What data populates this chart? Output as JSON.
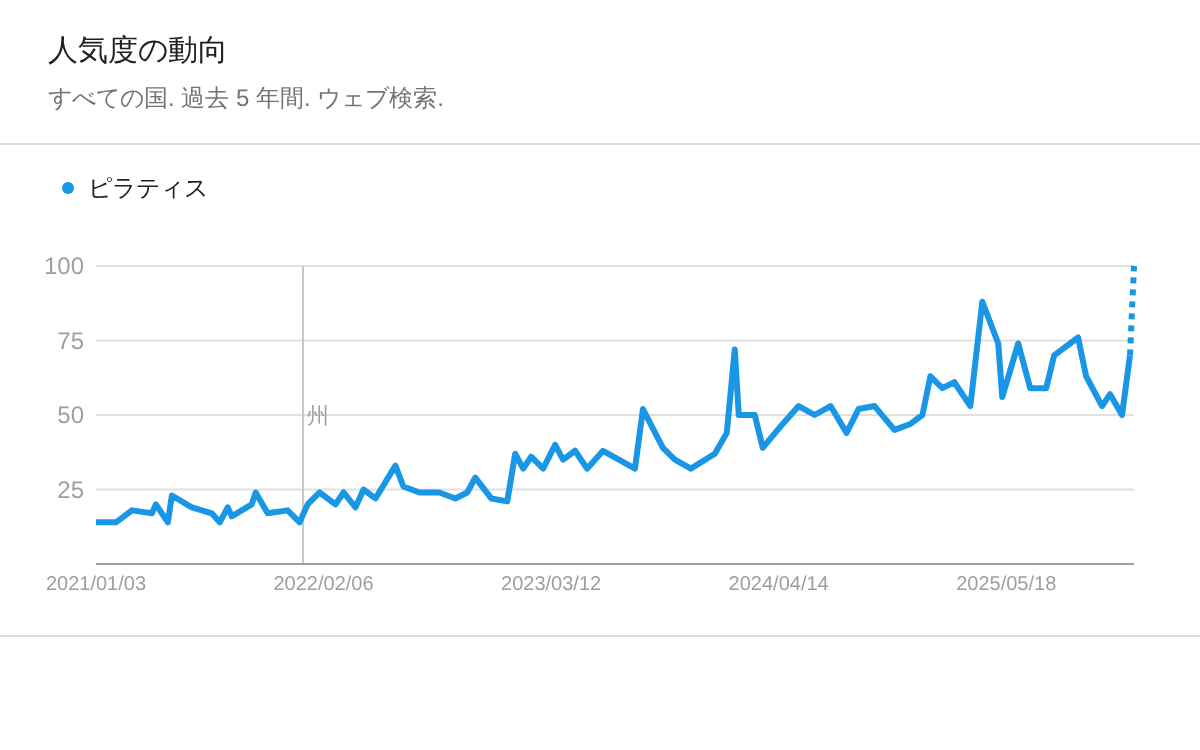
{
  "chart_data": {
    "type": "line",
    "title": "人気度の動向",
    "subtitle": "すべての国. 過去 5 年間. ウェブ検索.",
    "xlim": [
      "2021-01-03",
      "2025-12-28"
    ],
    "xticks": [
      {
        "value": "2021-01-03",
        "label": "2021/01/03"
      },
      {
        "value": "2022-02-06",
        "label": "2022/02/06"
      },
      {
        "value": "2023-03-12",
        "label": "2023/03/12"
      },
      {
        "value": "2024-04-14",
        "label": "2024/04/14"
      },
      {
        "value": "2025-05-18",
        "label": "2025/05/18"
      }
    ],
    "ylim": [
      0,
      100
    ],
    "yticks": [
      25,
      50,
      75,
      100
    ],
    "grid": "y",
    "legend": "top left",
    "marker": "none",
    "ref_lines": [
      {
        "axis": "x",
        "value": "2022-01-01",
        "label": "州",
        "color": "#c8c8c8"
      }
    ],
    "series": [
      {
        "name": "ピラティス",
        "color": "#1a96e6",
        "line_style": "solid",
        "x": [
          "2021-01-03",
          "2021-02-07",
          "2021-03-07",
          "2021-04-11",
          "2021-04-18",
          "2021-05-09",
          "2021-05-16",
          "2021-06-20",
          "2021-07-25",
          "2021-08-08",
          "2021-08-22",
          "2021-08-29",
          "2021-10-03",
          "2021-10-10",
          "2021-10-31",
          "2021-12-05",
          "2021-12-26",
          "2022-01-09",
          "2022-01-30",
          "2022-02-27",
          "2022-03-13",
          "2022-04-03",
          "2022-04-17",
          "2022-05-08",
          "2022-06-12",
          "2022-06-26",
          "2022-07-24",
          "2022-08-28",
          "2022-09-25",
          "2022-10-16",
          "2022-10-30",
          "2022-11-27",
          "2022-12-25",
          "2023-01-08",
          "2023-01-22",
          "2023-02-05",
          "2023-02-26",
          "2023-03-19",
          "2023-04-02",
          "2023-04-23",
          "2023-05-14",
          "2023-06-11",
          "2023-08-06",
          "2023-08-20",
          "2023-09-24",
          "2023-10-15",
          "2023-11-12",
          "2023-12-24",
          "2024-01-14",
          "2024-01-28",
          "2024-02-04",
          "2024-03-03",
          "2024-03-17",
          "2024-04-21",
          "2024-05-19",
          "2024-06-16",
          "2024-07-14",
          "2024-08-11",
          "2024-09-01",
          "2024-09-29",
          "2024-11-03",
          "2024-12-01",
          "2024-12-22",
          "2025-01-05",
          "2025-01-26",
          "2025-02-16",
          "2025-03-16",
          "2025-04-06",
          "2025-05-04",
          "2025-05-11",
          "2025-06-08",
          "2025-06-29",
          "2025-07-27",
          "2025-08-10",
          "2025-09-21",
          "2025-10-05",
          "2025-11-02",
          "2025-11-16",
          "2025-12-07",
          "2025-12-21"
        ],
        "values": [
          14,
          14,
          18,
          17,
          20,
          14,
          23,
          19,
          17,
          14,
          19,
          16,
          20,
          24,
          17,
          18,
          14,
          20,
          24,
          20,
          24,
          19,
          25,
          22,
          33,
          26,
          24,
          24,
          22,
          24,
          29,
          22,
          21,
          37,
          32,
          36,
          32,
          40,
          35,
          38,
          32,
          38,
          32,
          52,
          39,
          35,
          32,
          37,
          44,
          72,
          50,
          50,
          39,
          47,
          53,
          50,
          53,
          44,
          52,
          53,
          45,
          47,
          50,
          63,
          59,
          61,
          53,
          88,
          74,
          56,
          74,
          59,
          59,
          70,
          76,
          63,
          53,
          57,
          50,
          70
        ]
      },
      {
        "color": "#1a96e6",
        "line_style": "dotted",
        "x": [
          "2025-12-21",
          "2025-12-28"
        ],
        "values": [
          70,
          100
        ]
      }
    ]
  }
}
